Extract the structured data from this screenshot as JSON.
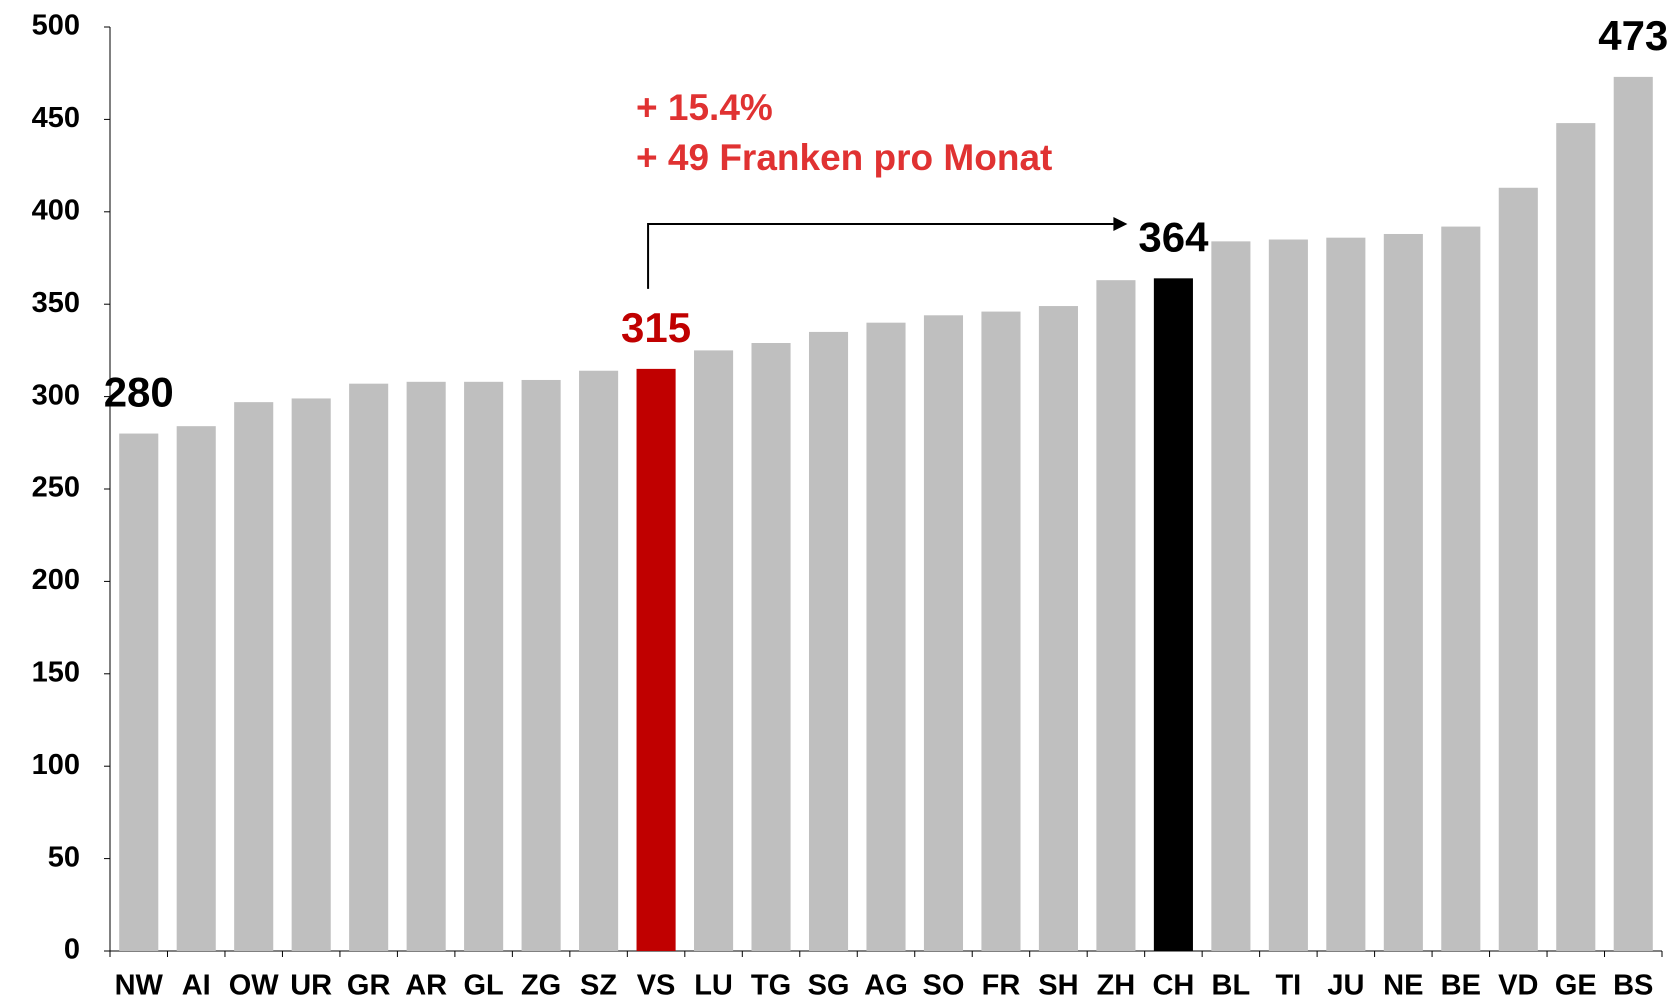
{
  "chart_data": {
    "type": "bar",
    "categories": [
      "NW",
      "AI",
      "OW",
      "UR",
      "GR",
      "AR",
      "GL",
      "ZG",
      "SZ",
      "VS",
      "LU",
      "TG",
      "SG",
      "AG",
      "SO",
      "FR",
      "SH",
      "ZH",
      "CH",
      "BL",
      "TI",
      "JU",
      "NE",
      "BE",
      "VD",
      "GE",
      "BS"
    ],
    "values": [
      280,
      284,
      297,
      299,
      307,
      308,
      308,
      309,
      314,
      315,
      325,
      329,
      335,
      340,
      344,
      346,
      349,
      363,
      364,
      384,
      385,
      386,
      388,
      392,
      413,
      448,
      473
    ],
    "value_labels": [
      "280",
      null,
      null,
      null,
      null,
      null,
      null,
      null,
      null,
      "315",
      null,
      null,
      null,
      null,
      null,
      null,
      null,
      null,
      "364",
      null,
      null,
      null,
      null,
      null,
      null,
      null,
      "473"
    ],
    "value_label_colors": [
      "#000000",
      null,
      null,
      null,
      null,
      null,
      null,
      null,
      null,
      "#c00000",
      null,
      null,
      null,
      null,
      null,
      null,
      null,
      null,
      "#000000",
      null,
      null,
      null,
      null,
      null,
      null,
      null,
      "#000000"
    ],
    "colors": [
      "#bfbfbf",
      "#bfbfbf",
      "#bfbfbf",
      "#bfbfbf",
      "#bfbfbf",
      "#bfbfbf",
      "#bfbfbf",
      "#bfbfbf",
      "#bfbfbf",
      "#c00000",
      "#bfbfbf",
      "#bfbfbf",
      "#bfbfbf",
      "#bfbfbf",
      "#bfbfbf",
      "#bfbfbf",
      "#bfbfbf",
      "#bfbfbf",
      "#000000",
      "#bfbfbf",
      "#bfbfbf",
      "#bfbfbf",
      "#bfbfbf",
      "#bfbfbf",
      "#bfbfbf",
      "#bfbfbf",
      "#bfbfbf"
    ],
    "annotations": [
      "+ 15.4%",
      "+ 49 Franken pro Monat"
    ],
    "annotation_color": "#e03232",
    "ylim": [
      0,
      500
    ],
    "yticks": [
      0,
      50,
      100,
      150,
      200,
      250,
      300,
      350,
      400,
      450,
      500
    ],
    "grid": false
  }
}
